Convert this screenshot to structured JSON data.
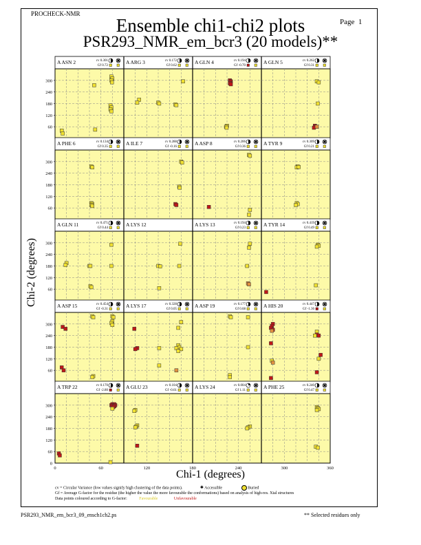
{
  "header": {
    "program": "PROCHECK-NMR",
    "page_label": "Page",
    "page_number": "1",
    "title_line1": "Ensemble chi1-chi2 plots",
    "title_line2": "PSR293_NMR_em_bcr3 (20 models)**"
  },
  "footer": {
    "filename": "PSR293_NMR_em_bcr3_09_ensch1ch2.ps",
    "selected_note": "** Selected residues only"
  },
  "legend": {
    "cv_text": "cv = Circular Variance (low values signify high clustering of the data points).",
    "accessible_label": "Accessible",
    "buried_label": "Buried",
    "gf_text": "Gf = Average G-factor for the residue (the higher the value the more favourable the conformations) based on analysis of high-res. Xtal structures",
    "coloured_text": "Data points coloured according to G-factor:",
    "favourable_label": "Favourable",
    "unfavourable_label": "Unfavourable"
  },
  "colors": {
    "panel_bg": "#fdfaa8",
    "favourable": "#f0e030",
    "mid": "#e09040",
    "unfavourable": "#c01818"
  },
  "chart_data": {
    "type": "scatter",
    "xlabel": "Chi-1 (degrees)",
    "ylabel": "Chi-2 (degrees)",
    "xlim": [
      0,
      360
    ],
    "ylim": [
      0,
      360
    ],
    "x_ticks": [
      "0",
      "60",
      "120",
      "180",
      "240",
      "300",
      "360"
    ],
    "y_ticks": [
      "60",
      "120",
      "180",
      "240",
      "300"
    ],
    "bottom_y_ticks": [
      "0",
      "60",
      "120",
      "180",
      "240",
      "300"
    ],
    "x_ticks_bottom": [
      "0",
      "60",
      "120",
      "180",
      "240",
      "300",
      "360"
    ],
    "grid": true,
    "panels": [
      {
        "residue": "A ASN 2",
        "cv": "cv 0.301",
        "gf": "Gf 0.72",
        "cvsym": "half",
        "acc": "buried",
        "points": [
          [
            295,
            320
          ],
          [
            300,
            310
          ],
          [
            295,
            300
          ],
          [
            298,
            290
          ],
          [
            205,
            275
          ],
          [
            290,
            170
          ],
          [
            295,
            160
          ],
          [
            290,
            150
          ],
          [
            295,
            140
          ],
          [
            210,
            45
          ],
          [
            35,
            40
          ],
          [
            40,
            25
          ]
        ],
        "colors": [
          0,
          0,
          0,
          0,
          0,
          0,
          0,
          0,
          0,
          0,
          0,
          0
        ]
      },
      {
        "residue": "A ARG 3",
        "cv": "cv 0.172",
        "gf": "Gf 0.62",
        "cvsym": "half",
        "acc": "buried",
        "points": [
          [
            310,
            295
          ],
          [
            80,
            200
          ],
          [
            70,
            185
          ],
          [
            180,
            185
          ],
          [
            185,
            180
          ],
          [
            270,
            175
          ],
          [
            275,
            172
          ]
        ],
        "colors": [
          0,
          0,
          0,
          0,
          0,
          0,
          0
        ]
      },
      {
        "residue": "A GLN 4",
        "cv": "cv 0.194",
        "gf": "Gf -0.70",
        "cvsym": "half",
        "acc": "buried",
        "points": [
          [
            195,
            300
          ],
          [
            200,
            295
          ],
          [
            198,
            290
          ],
          [
            195,
            285
          ],
          [
            200,
            280
          ],
          [
            180,
            65
          ],
          [
            175,
            60
          ],
          [
            178,
            55
          ]
        ],
        "colors": [
          2,
          2,
          2,
          2,
          2,
          0,
          0,
          0
        ]
      },
      {
        "residue": "A GLN 5",
        "cv": "cv 0.262",
        "gf": "Gf 0.31",
        "cvsym": "half",
        "acc": "buried",
        "points": [
          [
            290,
            295
          ],
          [
            300,
            290
          ],
          [
            295,
            180
          ],
          [
            280,
            65
          ],
          [
            285,
            60
          ],
          [
            275,
            55
          ],
          [
            290,
            60
          ]
        ],
        "colors": [
          0,
          0,
          0,
          2,
          2,
          2,
          1
        ]
      },
      {
        "residue": "A PHE 6",
        "cv": "cv 0.134",
        "gf": "Gf 0.35",
        "cvsym": "half",
        "acc": "buried",
        "points": [
          [
            190,
            275
          ],
          [
            195,
            270
          ],
          [
            190,
            85
          ],
          [
            195,
            80
          ],
          [
            190,
            75
          ],
          [
            195,
            70
          ]
        ],
        "colors": [
          0,
          0,
          0,
          0,
          0,
          0
        ]
      },
      {
        "residue": "A ILE 7",
        "cv": "cv 0.288",
        "gf": "Gf -0.16",
        "cvsym": "half",
        "acc": "buried",
        "points": [
          [
            300,
            300
          ],
          [
            305,
            295
          ],
          [
            290,
            170
          ],
          [
            292,
            165
          ],
          [
            270,
            80
          ],
          [
            275,
            75
          ]
        ],
        "colors": [
          0,
          0,
          0,
          0,
          2,
          2
        ]
      },
      {
        "residue": "A ASP 8",
        "cv": "cv 0.206",
        "gf": "Gf 0.36",
        "cvsym": "half",
        "acc": "buried",
        "points": [
          [
            295,
            335
          ],
          [
            300,
            330
          ],
          [
            85,
            65
          ],
          [
            300,
            50
          ],
          [
            295,
            25
          ]
        ],
        "colors": [
          0,
          0,
          2,
          0,
          0
        ]
      },
      {
        "residue": "A TYR 9",
        "cv": "cv 0.309",
        "gf": "Gf 0.21",
        "cvsym": "half",
        "acc": "buried",
        "points": [
          [
            190,
            275
          ],
          [
            185,
            270
          ],
          [
            195,
            272
          ],
          [
            185,
            85
          ],
          [
            190,
            80
          ],
          [
            180,
            75
          ]
        ],
        "colors": [
          0,
          0,
          0,
          0,
          0,
          0
        ]
      },
      {
        "residue": "A GLN 11",
        "cv": "cv 0.471",
        "gf": "Gf 0.44",
        "cvsym": "half",
        "acc": "buried",
        "points": [
          [
            295,
            290
          ],
          [
            60,
            195
          ],
          [
            55,
            185
          ],
          [
            180,
            180
          ],
          [
            185,
            180
          ],
          [
            295,
            180
          ],
          [
            185,
            75
          ],
          [
            190,
            70
          ]
        ],
        "colors": [
          0,
          0,
          0,
          0,
          0,
          0,
          0,
          0
        ]
      },
      {
        "residue": "A LYS 12",
        "cv": "",
        "gf": "",
        "cvsym": "",
        "acc": "",
        "points": [
          [
            295,
            295
          ],
          [
            180,
            180
          ],
          [
            190,
            178
          ],
          [
            290,
            180
          ],
          [
            185,
            65
          ]
        ],
        "colors": [
          0,
          0,
          0,
          0,
          0
        ]
      },
      {
        "residue": "A LYS 13",
        "cv": "cv 0.194",
        "gf": "Gf 0.23",
        "cvsym": "half",
        "acc": "buried",
        "points": [
          [
            300,
            295
          ],
          [
            295,
            275
          ],
          [
            285,
            180
          ],
          [
            290,
            90
          ],
          [
            295,
            85
          ]
        ],
        "colors": [
          0,
          0,
          0,
          1,
          1
        ]
      },
      {
        "residue": "A TYR 14",
        "cv": "cv 0.419",
        "gf": "Gf 0.49",
        "cvsym": "half",
        "acc": "buried",
        "points": [
          [
            295,
            290
          ],
          [
            300,
            285
          ],
          [
            290,
            280
          ],
          [
            285,
            80
          ],
          [
            25,
            45
          ]
        ],
        "colors": [
          0,
          0,
          0,
          0,
          2
        ]
      },
      {
        "residue": "A ASP 15",
        "cv": "cv 0.454",
        "gf": "Gf -0.31",
        "cvsym": "half",
        "acc": "buried",
        "points": [
          [
            195,
            340
          ],
          [
            200,
            335
          ],
          [
            300,
            340
          ],
          [
            305,
            335
          ],
          [
            300,
            315
          ],
          [
            295,
            305
          ],
          [
            300,
            295
          ],
          [
            40,
            285
          ],
          [
            55,
            275
          ],
          [
            35,
            75
          ],
          [
            45,
            60
          ],
          [
            200,
            30
          ],
          [
            195,
            25
          ]
        ],
        "colors": [
          0,
          0,
          0,
          0,
          0,
          0,
          0,
          2,
          2,
          2,
          2,
          0,
          0
        ]
      },
      {
        "residue": "A LYS 17",
        "cv": "cv 0.328",
        "gf": "Gf 0.05",
        "cvsym": "half",
        "acc": "buried",
        "points": [
          [
            300,
            310
          ],
          [
            285,
            280
          ],
          [
            55,
            275
          ],
          [
            70,
            175
          ],
          [
            60,
            170
          ],
          [
            185,
            175
          ],
          [
            285,
            190
          ],
          [
            290,
            180
          ],
          [
            275,
            175
          ],
          [
            300,
            170
          ],
          [
            285,
            160
          ],
          [
            185,
            85
          ],
          [
            275,
            60
          ]
        ],
        "colors": [
          0,
          0,
          2,
          2,
          2,
          0,
          0,
          0,
          0,
          0,
          0,
          0,
          1
        ]
      },
      {
        "residue": "A ASP 19",
        "cv": "cv 0.177",
        "gf": "Gf 0.68",
        "cvsym": "half",
        "acc": "buried",
        "points": [
          [
            195,
            340
          ],
          [
            200,
            335
          ],
          [
            290,
            335
          ],
          [
            290,
            180
          ],
          [
            195,
            35
          ],
          [
            195,
            25
          ]
        ],
        "colors": [
          0,
          0,
          0,
          0,
          0,
          0
        ]
      },
      {
        "residue": "A HIS 20",
        "cv": "cv 0.447",
        "gf": "Gf -1.36",
        "cvsym": "half",
        "acc": "buried",
        "points": [
          [
            60,
            300
          ],
          [
            55,
            290
          ],
          [
            50,
            280
          ],
          [
            60,
            270
          ],
          [
            55,
            265
          ],
          [
            290,
            260
          ],
          [
            290,
            245
          ],
          [
            300,
            240
          ],
          [
            280,
            240
          ],
          [
            50,
            200
          ],
          [
            310,
            140
          ],
          [
            55,
            110
          ],
          [
            60,
            100
          ],
          [
            300,
            120
          ],
          [
            290,
            50
          ],
          [
            50,
            20
          ]
        ],
        "colors": [
          2,
          2,
          2,
          2,
          1,
          0,
          2,
          2,
          0,
          2,
          2,
          0,
          1,
          0,
          2,
          2
        ]
      },
      {
        "residue": "A TRP 22",
        "cv": "cv 0.170",
        "gf": "Gf -2.80",
        "cvsym": "half",
        "acc": "buried",
        "points": [
          [
            300,
            305
          ],
          [
            310,
            305
          ],
          [
            305,
            300
          ],
          [
            295,
            300
          ],
          [
            315,
            300
          ],
          [
            300,
            295
          ],
          [
            310,
            295
          ],
          [
            305,
            290
          ],
          [
            300,
            282
          ],
          [
            20,
            50
          ],
          [
            25,
            40
          ],
          [
            290,
            5
          ]
        ],
        "colors": [
          2,
          2,
          2,
          2,
          2,
          2,
          2,
          2,
          0,
          2,
          2,
          0
        ]
      },
      {
        "residue": "A GLU 23",
        "cv": "cv 0.104",
        "gf": "Gf -0.61",
        "cvsym": "half",
        "acc": "buried",
        "points": [
          [
            60,
            275
          ],
          [
            55,
            270
          ],
          [
            70,
            195
          ],
          [
            65,
            190
          ],
          [
            60,
            185
          ],
          [
            70,
            90
          ]
        ],
        "colors": [
          0,
          0,
          0,
          0,
          0,
          2
        ]
      },
      {
        "residue": "A LYS 24",
        "cv": "cv 0.004",
        "gf": "Gf 1.11",
        "cvsym": "low",
        "acc": "buried",
        "points": [
          [
            300,
            190
          ],
          [
            290,
            185
          ],
          [
            285,
            180
          ]
        ],
        "colors": [
          0,
          0,
          0
        ]
      },
      {
        "residue": "A PHE 25",
        "cv": "cv 0.240",
        "gf": "Gf 0.47",
        "cvsym": "half",
        "acc": "buried",
        "points": [
          [
            290,
            290
          ],
          [
            295,
            285
          ],
          [
            300,
            280
          ],
          [
            290,
            275
          ],
          [
            285,
            85
          ],
          [
            295,
            80
          ]
        ],
        "colors": [
          0,
          0,
          0,
          0,
          0,
          0
        ]
      }
    ]
  }
}
